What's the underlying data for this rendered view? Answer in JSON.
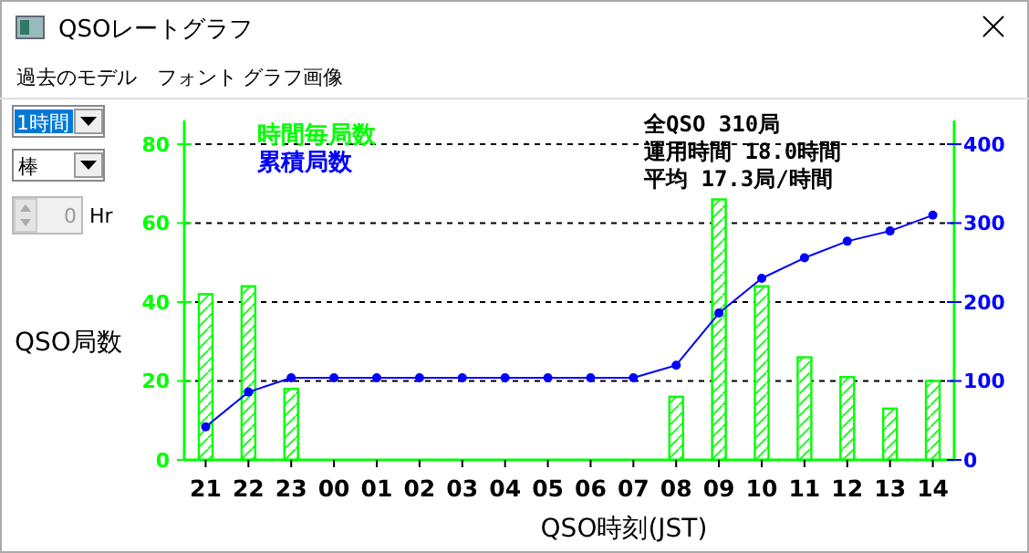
{
  "chart_data": {
    "type": "bar",
    "title": "QSOレートグラフ",
    "xlabel": "QSO時刻(JST)",
    "ylabel": "QSO局数",
    "categories": [
      "21",
      "22",
      "23",
      "00",
      "01",
      "02",
      "03",
      "04",
      "05",
      "06",
      "07",
      "08",
      "09",
      "10",
      "11",
      "12",
      "13",
      "14"
    ],
    "series": [
      {
        "name": "時間毎局数",
        "color": "#00ff00",
        "values": [
          42,
          44,
          18,
          0,
          0,
          0,
          0,
          0,
          0,
          0,
          0,
          16,
          66,
          44,
          26,
          21,
          13,
          20
        ]
      },
      {
        "name": "累積局数",
        "type": "line",
        "axis": "y2",
        "color": "#0000ff",
        "values": [
          42,
          86,
          104,
          104,
          104,
          104,
          104,
          104,
          104,
          104,
          104,
          120,
          186,
          230,
          256,
          277,
          290,
          310
        ]
      }
    ],
    "ylim": [
      0,
      86
    ],
    "yticks": [
      0,
      20,
      40,
      60,
      80
    ],
    "y2lim": [
      0,
      430
    ],
    "y2ticks": [
      0,
      100,
      200,
      300,
      400
    ],
    "grid": "y",
    "legend": "top left",
    "marker": "circle",
    "line_style": "solid",
    "annotations": [
      "全QSO 310局",
      "運用時間 18.0時間",
      "平均 17.3局/時間",
      "過去のモデル",
      "フォント",
      "グラフ画像",
      "1時間",
      "棒",
      "0",
      "Hr"
    ]
  }
}
